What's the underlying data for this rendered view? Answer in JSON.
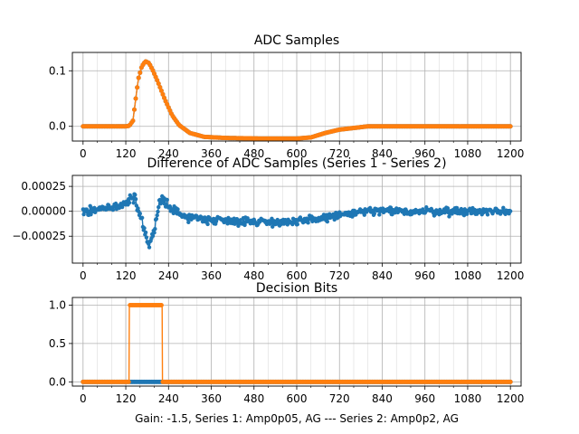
{
  "figure": {
    "footer": "Gain: -1.5, Series 1: Amp0p05, AG --- Series 2: Amp0p2, AG"
  },
  "colors": {
    "series1": "#1f77b4",
    "series2": "#ff7f0e",
    "grid": "#b0b0b0"
  },
  "chart_data": [
    {
      "type": "line",
      "title": "ADC Samples",
      "xlim": [
        -30,
        1230
      ],
      "ylim": [
        -0.0265,
        0.133
      ],
      "xticks": [
        0,
        120,
        240,
        360,
        480,
        600,
        720,
        840,
        960,
        1080,
        1200
      ],
      "yticks": [
        0.0,
        0.1
      ],
      "ytick_labels": [
        "0.0",
        "0.1"
      ],
      "grid": true,
      "series": [
        {
          "name": "Series 1",
          "color": "#1f77b4",
          "marker": "o",
          "points": [
            [
              0,
              0
            ],
            [
              120,
              0
            ],
            [
              130,
              0.001
            ],
            [
              140,
              0.01
            ],
            [
              148,
              0.05
            ],
            [
              155,
              0.085
            ],
            [
              165,
              0.108
            ],
            [
              175,
              0.117
            ],
            [
              185,
              0.114
            ],
            [
              195,
              0.102
            ],
            [
              210,
              0.08
            ],
            [
              230,
              0.048
            ],
            [
              250,
              0.02
            ],
            [
              270,
              0.002
            ],
            [
              300,
              -0.012
            ],
            [
              340,
              -0.019
            ],
            [
              400,
              -0.021
            ],
            [
              500,
              -0.022
            ],
            [
              600,
              -0.022
            ],
            [
              640,
              -0.02
            ],
            [
              680,
              -0.012
            ],
            [
              720,
              -0.006
            ],
            [
              760,
              -0.003
            ],
            [
              800,
              0
            ],
            [
              1200,
              0
            ]
          ]
        },
        {
          "name": "Series 2",
          "color": "#ff7f0e",
          "marker": "o",
          "points": [
            [
              0,
              0
            ],
            [
              120,
              0
            ],
            [
              130,
              0.001
            ],
            [
              140,
              0.01
            ],
            [
              148,
              0.05
            ],
            [
              155,
              0.085
            ],
            [
              165,
              0.108
            ],
            [
              175,
              0.117
            ],
            [
              185,
              0.114
            ],
            [
              195,
              0.102
            ],
            [
              210,
              0.08
            ],
            [
              230,
              0.048
            ],
            [
              250,
              0.02
            ],
            [
              270,
              0.002
            ],
            [
              300,
              -0.012
            ],
            [
              340,
              -0.019
            ],
            [
              400,
              -0.021
            ],
            [
              500,
              -0.022
            ],
            [
              600,
              -0.022
            ],
            [
              640,
              -0.02
            ],
            [
              680,
              -0.012
            ],
            [
              720,
              -0.006
            ],
            [
              760,
              -0.003
            ],
            [
              800,
              0
            ],
            [
              1200,
              0
            ]
          ]
        }
      ]
    },
    {
      "type": "line",
      "title": "Difference of ADC Samples (Series 1 - Series 2)",
      "xlim": [
        -30,
        1230
      ],
      "ylim": [
        -0.00052,
        0.00036
      ],
      "xticks": [
        0,
        120,
        240,
        360,
        480,
        600,
        720,
        840,
        960,
        1080,
        1200
      ],
      "yticks": [
        -0.00025,
        0.0,
        0.00025
      ],
      "ytick_labels": [
        "−0.00025",
        "0.00000",
        "0.00025"
      ],
      "grid": true,
      "noise_amplitude": 6e-05,
      "series": [
        {
          "name": "Series 1 - Series 2",
          "color": "#1f77b4",
          "marker": "o",
          "points": [
            [
              0,
              0
            ],
            [
              100,
              5e-05
            ],
            [
              130,
              0.0001
            ],
            [
              145,
              0.00015
            ],
            [
              155,
              0
            ],
            [
              165,
              -0.0001
            ],
            [
              175,
              -0.00025
            ],
            [
              185,
              -0.00035
            ],
            [
              195,
              -0.00028
            ],
            [
              205,
              -0.0001
            ],
            [
              215,
              0.0001
            ],
            [
              225,
              0.00015
            ],
            [
              240,
              5e-05
            ],
            [
              280,
              -5e-05
            ],
            [
              350,
              -8e-05
            ],
            [
              450,
              -0.0001
            ],
            [
              600,
              -0.00011
            ],
            [
              700,
              -5e-05
            ],
            [
              800,
              0
            ],
            [
              1200,
              0
            ]
          ]
        }
      ]
    },
    {
      "type": "line",
      "title": "Decision Bits",
      "xlabel": "Gain: -1.5, Series 1: Amp0p05, AG --- Series 2: Amp0p2, AG",
      "xlim": [
        -30,
        1230
      ],
      "ylim": [
        -0.055,
        1.1
      ],
      "xticks": [
        0,
        120,
        240,
        360,
        480,
        600,
        720,
        840,
        960,
        1080,
        1200
      ],
      "yticks": [
        0.0,
        0.5,
        1.0
      ],
      "ytick_labels": [
        "0.0",
        "0.5",
        "1.0"
      ],
      "grid": true,
      "series": [
        {
          "name": "Series 1",
          "color": "#1f77b4",
          "marker": "o",
          "points": [
            [
              0,
              0
            ],
            [
              1200,
              0
            ]
          ]
        },
        {
          "name": "Series 2",
          "color": "#ff7f0e",
          "marker": "o",
          "points": [
            [
              0,
              0
            ],
            [
              129,
              0
            ],
            [
              130,
              1
            ],
            [
              222,
              1
            ],
            [
              223,
              0
            ],
            [
              1200,
              0
            ]
          ]
        }
      ]
    }
  ]
}
